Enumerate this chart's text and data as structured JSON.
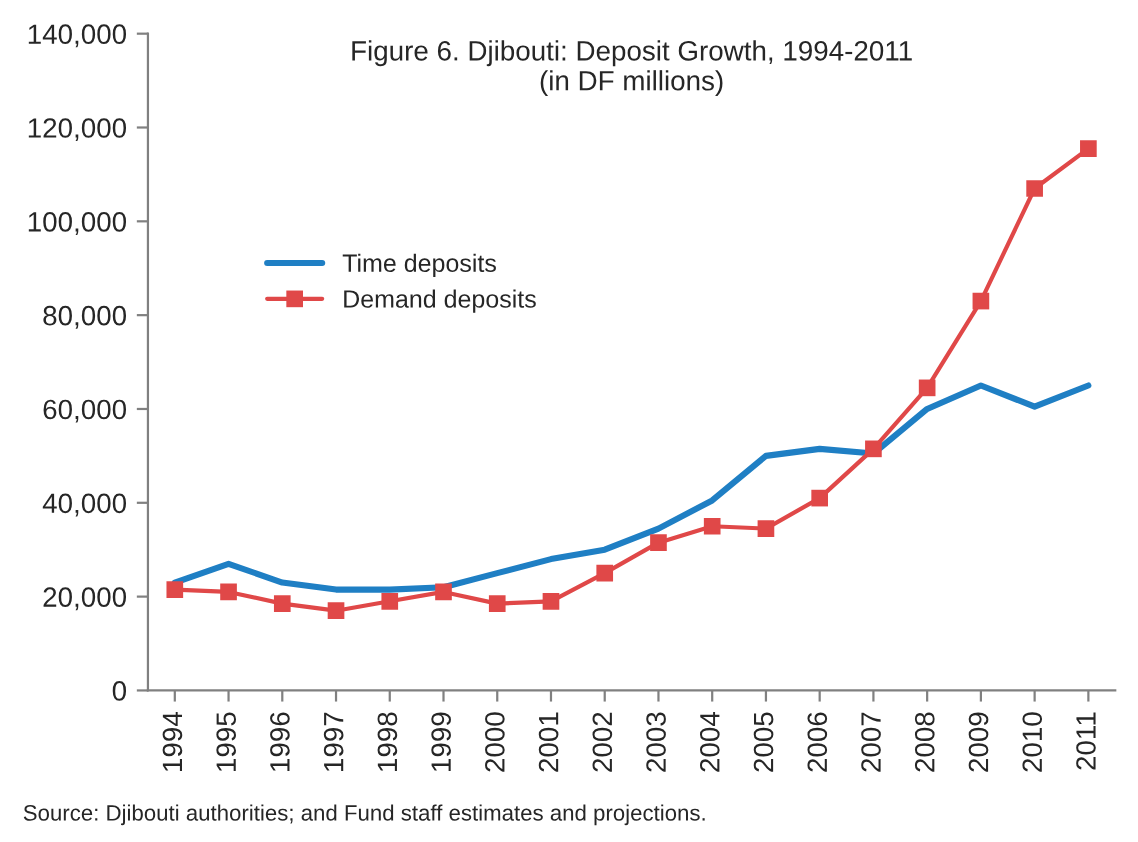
{
  "chart_data": {
    "type": "line",
    "title": "Figure 6. Djibouti: Deposit Growth, 1994-2011",
    "subtitle": "(in DF millions)",
    "categories": [
      "1994",
      "1995",
      "1996",
      "1997",
      "1998",
      "1999",
      "2000",
      "2001",
      "2002",
      "2003",
      "2004",
      "2005",
      "2006",
      "2007",
      "2008",
      "2009",
      "2010",
      "2011"
    ],
    "series": [
      {
        "name": "Time deposits",
        "color": "#1f7fc4",
        "marker": "none",
        "values": [
          23000,
          27000,
          23000,
          21500,
          21500,
          22000,
          25000,
          28000,
          30000,
          34500,
          40500,
          50000,
          51500,
          50500,
          60000,
          65000,
          60500,
          65000
        ]
      },
      {
        "name": "Demand deposits",
        "color": "#e04848",
        "marker": "square",
        "values": [
          21500,
          21000,
          18500,
          17000,
          19000,
          21000,
          18500,
          19000,
          25000,
          31500,
          35000,
          34500,
          41000,
          51500,
          64500,
          83000,
          107000,
          115500
        ]
      }
    ],
    "ylim": [
      0,
      140000
    ],
    "yticks": [
      {
        "value": 0,
        "label": "0"
      },
      {
        "value": 20000,
        "label": "20,000"
      },
      {
        "value": 40000,
        "label": "40,000"
      },
      {
        "value": 60000,
        "label": "60,000"
      },
      {
        "value": 80000,
        "label": "80,000"
      },
      {
        "value": 100000,
        "label": "100,000"
      },
      {
        "value": 120000,
        "label": "120,000"
      },
      {
        "value": 140000,
        "label": "140,000"
      }
    ],
    "grid": false,
    "legend": "left",
    "annotations": [
      "Source: Djibouti authorities; and Fund staff estimates and projections."
    ]
  }
}
